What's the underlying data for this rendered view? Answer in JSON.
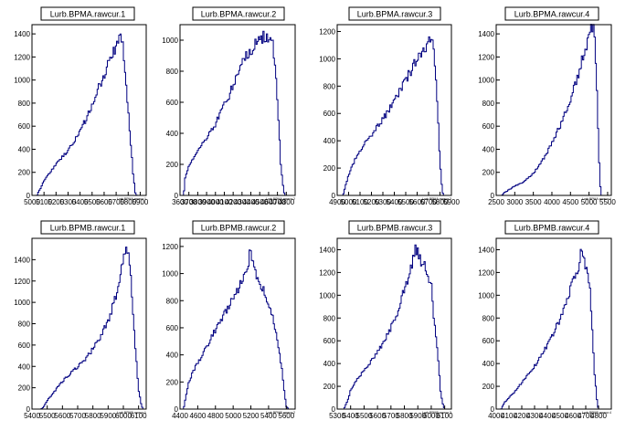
{
  "chart_data": [
    {
      "type": "bar",
      "title": "Lurb.BPMA.rawcur.1",
      "xlabel": "Lurb.BPMA.rawcur.1",
      "xlim": [
        5000,
        5950
      ],
      "ylim": [
        0,
        1480
      ],
      "xticks": [
        "5000",
        "5100",
        "5200",
        "5300",
        "5400",
        "5500",
        "5600",
        "5700",
        "5800",
        "5900"
      ],
      "yticks": [
        0,
        200,
        400,
        600,
        800,
        1000,
        1200,
        1400
      ],
      "profile": [
        [
          5040,
          0
        ],
        [
          5070,
          60
        ],
        [
          5100,
          130
        ],
        [
          5150,
          200
        ],
        [
          5200,
          270
        ],
        [
          5250,
          330
        ],
        [
          5300,
          390
        ],
        [
          5350,
          460
        ],
        [
          5400,
          560
        ],
        [
          5450,
          660
        ],
        [
          5500,
          780
        ],
        [
          5550,
          920
        ],
        [
          5600,
          1050
        ],
        [
          5650,
          1170
        ],
        [
          5700,
          1300
        ],
        [
          5730,
          1420
        ],
        [
          5750,
          1350
        ],
        [
          5780,
          1000
        ],
        [
          5810,
          600
        ],
        [
          5840,
          200
        ],
        [
          5860,
          20
        ],
        [
          5870,
          0
        ]
      ]
    },
    {
      "type": "bar",
      "title": "Lurb.BPMA.rawcur.2",
      "xlabel": "Lurb.BPMA.rawcur.2",
      "xlim": [
        3600,
        4900
      ],
      "ylim": [
        0,
        1100
      ],
      "xticks": [
        "3600",
        "3700",
        "3800",
        "3900",
        "4000",
        "4100",
        "4200",
        "4300",
        "4400",
        "4500",
        "4600",
        "4700",
        "4800"
      ],
      "yticks": [
        0,
        200,
        400,
        600,
        800,
        1000
      ],
      "profile": [
        [
          3640,
          0
        ],
        [
          3660,
          120
        ],
        [
          3700,
          190
        ],
        [
          3750,
          240
        ],
        [
          3800,
          290
        ],
        [
          3850,
          330
        ],
        [
          3900,
          370
        ],
        [
          3950,
          420
        ],
        [
          4000,
          460
        ],
        [
          4050,
          520
        ],
        [
          4100,
          580
        ],
        [
          4150,
          640
        ],
        [
          4200,
          710
        ],
        [
          4250,
          780
        ],
        [
          4300,
          850
        ],
        [
          4350,
          900
        ],
        [
          4400,
          940
        ],
        [
          4450,
          970
        ],
        [
          4500,
          1000
        ],
        [
          4550,
          1020
        ],
        [
          4600,
          1030
        ],
        [
          4620,
          990
        ],
        [
          4650,
          960
        ],
        [
          4680,
          800
        ],
        [
          4710,
          500
        ],
        [
          4740,
          180
        ],
        [
          4770,
          30
        ],
        [
          4790,
          0
        ]
      ]
    },
    {
      "type": "bar",
      "title": "Lurb.BPMA.rawcur.3",
      "xlabel": "Lurb.BPMA.rawcur.3",
      "xlim": [
        4900,
        5900
      ],
      "ylim": [
        0,
        1250
      ],
      "xticks": [
        "4900",
        "5000",
        "5100",
        "5200",
        "5300",
        "5400",
        "5500",
        "5600",
        "5700",
        "5800",
        "5900"
      ],
      "yticks": [
        0,
        200,
        400,
        600,
        800,
        1000,
        1200
      ],
      "profile": [
        [
          4950,
          0
        ],
        [
          4970,
          60
        ],
        [
          5000,
          150
        ],
        [
          5050,
          250
        ],
        [
          5100,
          330
        ],
        [
          5150,
          390
        ],
        [
          5200,
          440
        ],
        [
          5250,
          500
        ],
        [
          5300,
          560
        ],
        [
          5350,
          620
        ],
        [
          5400,
          690
        ],
        [
          5450,
          760
        ],
        [
          5500,
          840
        ],
        [
          5550,
          920
        ],
        [
          5600,
          1000
        ],
        [
          5650,
          1060
        ],
        [
          5700,
          1130
        ],
        [
          5720,
          1160
        ],
        [
          5740,
          1100
        ],
        [
          5760,
          900
        ],
        [
          5780,
          600
        ],
        [
          5800,
          250
        ],
        [
          5820,
          30
        ],
        [
          5830,
          0
        ]
      ]
    },
    {
      "type": "bar",
      "title": "Lurb.BPMA.rawcur.4",
      "xlabel": "Lurb.BPMA.rawcur.4",
      "xlim": [
        2500,
        5600
      ],
      "ylim": [
        0,
        1480
      ],
      "xticks": [
        "2500",
        "3000",
        "3500",
        "4000",
        "4500",
        "5000",
        "5500"
      ],
      "yticks": [
        0,
        200,
        400,
        600,
        800,
        1000,
        1200,
        1400
      ],
      "profile": [
        [
          2650,
          0
        ],
        [
          2700,
          20
        ],
        [
          2800,
          40
        ],
        [
          2900,
          60
        ],
        [
          3000,
          80
        ],
        [
          3200,
          110
        ],
        [
          3400,
          160
        ],
        [
          3600,
          230
        ],
        [
          3800,
          330
        ],
        [
          4000,
          450
        ],
        [
          4200,
          590
        ],
        [
          4400,
          750
        ],
        [
          4600,
          930
        ],
        [
          4800,
          1150
        ],
        [
          4900,
          1280
        ],
        [
          5000,
          1380
        ],
        [
          5050,
          1430
        ],
        [
          5100,
          1440
        ],
        [
          5150,
          1400
        ],
        [
          5180,
          1200
        ],
        [
          5220,
          800
        ],
        [
          5260,
          400
        ],
        [
          5300,
          100
        ],
        [
          5320,
          0
        ]
      ]
    },
    {
      "type": "bar",
      "title": "Lurb.BPMB.rawcur.1",
      "xlabel": "Lurb.BPMB.rawcur.1",
      "xlim": [
        5400,
        6150
      ],
      "ylim": [
        0,
        1600
      ],
      "xticks": [
        "5400",
        "5500",
        "5600",
        "5700",
        "5800",
        "5900",
        "6000",
        "6100"
      ],
      "yticks": [
        0,
        200,
        400,
        600,
        800,
        1000,
        1200,
        1400
      ],
      "profile": [
        [
          5460,
          0
        ],
        [
          5480,
          30
        ],
        [
          5500,
          80
        ],
        [
          5550,
          170
        ],
        [
          5600,
          260
        ],
        [
          5650,
          330
        ],
        [
          5700,
          400
        ],
        [
          5750,
          470
        ],
        [
          5800,
          560
        ],
        [
          5850,
          680
        ],
        [
          5900,
          830
        ],
        [
          5950,
          1050
        ],
        [
          5980,
          1250
        ],
        [
          6000,
          1420
        ],
        [
          6020,
          1480
        ],
        [
          6040,
          1380
        ],
        [
          6060,
          1000
        ],
        [
          6080,
          550
        ],
        [
          6100,
          180
        ],
        [
          6120,
          20
        ],
        [
          6130,
          0
        ]
      ]
    },
    {
      "type": "bar",
      "title": "Lurb.BPMB.rawcur.2",
      "xlabel": "Lurb.BPMB.rawcur.2",
      "xlim": [
        4400,
        5700
      ],
      "ylim": [
        0,
        1260
      ],
      "xticks": [
        "4400",
        "4600",
        "4800",
        "5000",
        "5200",
        "5400",
        "5600"
      ],
      "yticks": [
        0,
        200,
        400,
        600,
        800,
        1000,
        1200
      ],
      "profile": [
        [
          4440,
          0
        ],
        [
          4470,
          100
        ],
        [
          4500,
          200
        ],
        [
          4550,
          280
        ],
        [
          4600,
          340
        ],
        [
          4650,
          400
        ],
        [
          4700,
          460
        ],
        [
          4750,
          520
        ],
        [
          4800,
          580
        ],
        [
          4850,
          640
        ],
        [
          4900,
          700
        ],
        [
          4950,
          760
        ],
        [
          5000,
          820
        ],
        [
          5050,
          880
        ],
        [
          5100,
          930
        ],
        [
          5150,
          1000
        ],
        [
          5180,
          1100
        ],
        [
          5200,
          1200
        ],
        [
          5220,
          1100
        ],
        [
          5250,
          1000
        ],
        [
          5300,
          920
        ],
        [
          5350,
          860
        ],
        [
          5400,
          800
        ],
        [
          5450,
          660
        ],
        [
          5500,
          500
        ],
        [
          5550,
          300
        ],
        [
          5580,
          120
        ],
        [
          5600,
          20
        ],
        [
          5620,
          0
        ]
      ]
    },
    {
      "type": "bar",
      "title": "Lurb.BPMB.rawcur.3",
      "xlabel": "Lurb.BPMB.rawcur.3",
      "xlim": [
        5300,
        6150
      ],
      "ylim": [
        0,
        1500
      ],
      "xticks": [
        "5300",
        "5400",
        "5500",
        "5600",
        "5700",
        "5800",
        "5900",
        "6000",
        "6100"
      ],
      "yticks": [
        0,
        200,
        400,
        600,
        800,
        1000,
        1200,
        1400
      ],
      "profile": [
        [
          5350,
          0
        ],
        [
          5380,
          80
        ],
        [
          5400,
          170
        ],
        [
          5450,
          260
        ],
        [
          5500,
          340
        ],
        [
          5550,
          420
        ],
        [
          5600,
          500
        ],
        [
          5650,
          600
        ],
        [
          5700,
          720
        ],
        [
          5750,
          860
        ],
        [
          5800,
          1050
        ],
        [
          5850,
          1250
        ],
        [
          5880,
          1400
        ],
        [
          5900,
          1420
        ],
        [
          5920,
          1300
        ],
        [
          5950,
          1260
        ],
        [
          5980,
          1150
        ],
        [
          6000,
          1100
        ],
        [
          6020,
          800
        ],
        [
          6050,
          450
        ],
        [
          6070,
          150
        ],
        [
          6090,
          20
        ],
        [
          6100,
          0
        ]
      ]
    },
    {
      "type": "bar",
      "title": "Lurb.BPMB.rawcur.4",
      "xlabel": "Lurb.BPMB.rawcur.4",
      "xlim": [
        4000,
        4900
      ],
      "ylim": [
        0,
        1500
      ],
      "xticks": [
        "4000",
        "4100",
        "4200",
        "4300",
        "4400",
        "4500",
        "4600",
        "4700",
        "4800"
      ],
      "yticks": [
        0,
        200,
        400,
        600,
        800,
        1000,
        1200,
        1400
      ],
      "profile": [
        [
          4040,
          0
        ],
        [
          4060,
          50
        ],
        [
          4100,
          100
        ],
        [
          4150,
          160
        ],
        [
          4200,
          230
        ],
        [
          4250,
          300
        ],
        [
          4300,
          380
        ],
        [
          4350,
          460
        ],
        [
          4400,
          560
        ],
        [
          4450,
          670
        ],
        [
          4500,
          800
        ],
        [
          4550,
          950
        ],
        [
          4600,
          1120
        ],
        [
          4650,
          1280
        ],
        [
          4670,
          1400
        ],
        [
          4690,
          1300
        ],
        [
          4710,
          1250
        ],
        [
          4730,
          1100
        ],
        [
          4750,
          700
        ],
        [
          4770,
          300
        ],
        [
          4790,
          50
        ],
        [
          4800,
          0
        ]
      ]
    }
  ]
}
